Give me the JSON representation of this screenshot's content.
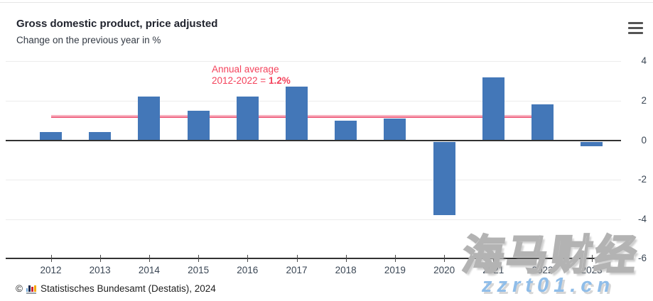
{
  "header": {
    "title": "Gross domestic product, price adjusted",
    "subtitle": "Change on the previous year in %"
  },
  "chart_data": {
    "type": "bar",
    "title": "Gross domestic product, price adjusted",
    "subtitle": "Change on the previous year in %",
    "categories": [
      "2012",
      "2013",
      "2014",
      "2015",
      "2016",
      "2017",
      "2018",
      "2019",
      "2020",
      "2021",
      "2022",
      "2023"
    ],
    "values": [
      0.4,
      0.4,
      2.2,
      1.5,
      2.2,
      2.7,
      1.0,
      1.1,
      -3.8,
      3.2,
      1.8,
      -0.3
    ],
    "ylabel": "",
    "xlabel": "",
    "ylim": [
      -6,
      4
    ],
    "yticks": [
      4,
      2,
      0,
      -2,
      -4,
      -6
    ],
    "grid": true,
    "axis_side": "right",
    "bar_color": "#4377b8",
    "annotation": {
      "line1": "Annual average",
      "line2_prefix": "2012-2022 = ",
      "line2_value": "1.2%",
      "color": "#f4435c"
    },
    "average_line": {
      "value": 1.2,
      "from_category": "2012",
      "to_category": "2022",
      "color": "#ee5f7d"
    }
  },
  "footer": {
    "copyright": "©",
    "source": "Statistisches Bundesamt (Destatis), 2024"
  },
  "watermark": {
    "cn_text": "海马财经",
    "url_text": "zzrt01.cn"
  }
}
